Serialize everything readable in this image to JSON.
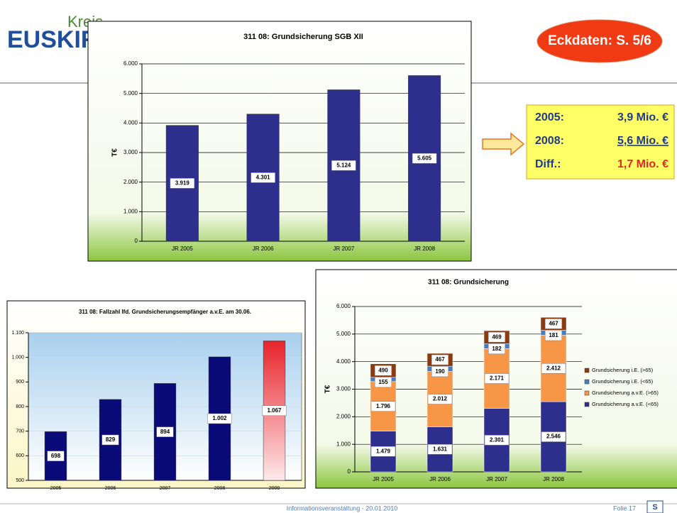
{
  "logo": {
    "top": "Kreis",
    "name": "EUSKIRCHEN"
  },
  "badge": "Eckdaten: S. 5/6",
  "summary": [
    {
      "label": "2005:",
      "value": "3,9 Mio. €"
    },
    {
      "label": "2008:",
      "value": "5,6 Mio. €"
    },
    {
      "label": "Diff.:",
      "value": "1,7 Mio. €"
    }
  ],
  "footer": {
    "text": "Informationsveranstaltung - 20.01.2010",
    "slide": "Folie 17",
    "mark": "S"
  },
  "chart_data": [
    {
      "type": "bar",
      "title": "311 08: Grundsicherung SGB XII",
      "ylabel": "T€",
      "categories": [
        "JR 2005",
        "JR 2006",
        "JR 2007",
        "JR 2008"
      ],
      "values": [
        3919,
        4301,
        5124,
        5605
      ],
      "value_labels": [
        "3.919",
        "4.301",
        "5.124",
        "5.605"
      ],
      "color": "#2e2e8c",
      "ylim": [
        0,
        6000
      ],
      "yticks": [
        0,
        {
          "value": 1000,
          "label": "1.000"
        },
        {
          "value": 2000,
          "label": "2.000"
        },
        {
          "value": 3000,
          "label": "3.000"
        },
        {
          "value": 4000,
          "label": "4.000"
        },
        {
          "value": 5000,
          "label": "5.000"
        },
        {
          "value": 6000,
          "label": "6.000"
        }
      ],
      "grid": true
    },
    {
      "type": "bar",
      "title": "311 08: Fallzahl lfd. Grundsicherungsempfänger a.v.E. am 30.06.",
      "categories": [
        "2005",
        "2006",
        "2007",
        "2008",
        "2009"
      ],
      "values": [
        698,
        829,
        894,
        1002,
        1067
      ],
      "value_labels": [
        "698",
        "829",
        "894",
        "1.002",
        "1.067"
      ],
      "colors": [
        "#0a0a78",
        "#0a0a78",
        "#0a0a78",
        "#0a0a78",
        "#e8232a"
      ],
      "ylim": [
        500,
        1100
      ],
      "yticks": [
        500,
        600,
        700,
        800,
        900,
        {
          "value": 1000,
          "label": "1.000"
        },
        {
          "value": 1100,
          "label": "1.100"
        }
      ],
      "grid": true
    },
    {
      "type": "stacked_bar",
      "title": "311 08: Grundsicherung",
      "ylabel": "T€",
      "categories": [
        "JR 2005",
        "JR 2006",
        "JR 2007",
        "JR 2008"
      ],
      "series": [
        {
          "name": "Grundsicherung a.v.E. (<65)",
          "color": "#2e2e8c",
          "values": [
            1479,
            1631,
            2301,
            2546
          ],
          "value_labels": [
            "1.479",
            "1.631",
            "2.301",
            "2.546"
          ]
        },
        {
          "name": "Grundsicherung a.v.E. (>65)",
          "color": "#f79646",
          "values": [
            1796,
            2012,
            2171,
            2412
          ],
          "value_labels": [
            "1.796",
            "2.012",
            "2.171",
            "2.412"
          ]
        },
        {
          "name": "Grundsicherung i.E. (<65)",
          "color": "#4a7ebb",
          "values": [
            155,
            190,
            182,
            181
          ]
        },
        {
          "name": "Grundsicherung i.E. (>65)",
          "color": "#8b3a0f",
          "values": [
            490,
            467,
            469,
            467
          ]
        }
      ],
      "ylim": [
        0,
        6000
      ],
      "yticks": [
        0,
        {
          "value": 1000,
          "label": "1.000"
        },
        {
          "value": 2000,
          "label": "2.000"
        },
        {
          "value": 3000,
          "label": "3.000"
        },
        {
          "value": 4000,
          "label": "4.000"
        },
        {
          "value": 5000,
          "label": "5.000"
        },
        {
          "value": 6000,
          "label": "6.000"
        }
      ],
      "grid": true,
      "legend": "right"
    }
  ]
}
